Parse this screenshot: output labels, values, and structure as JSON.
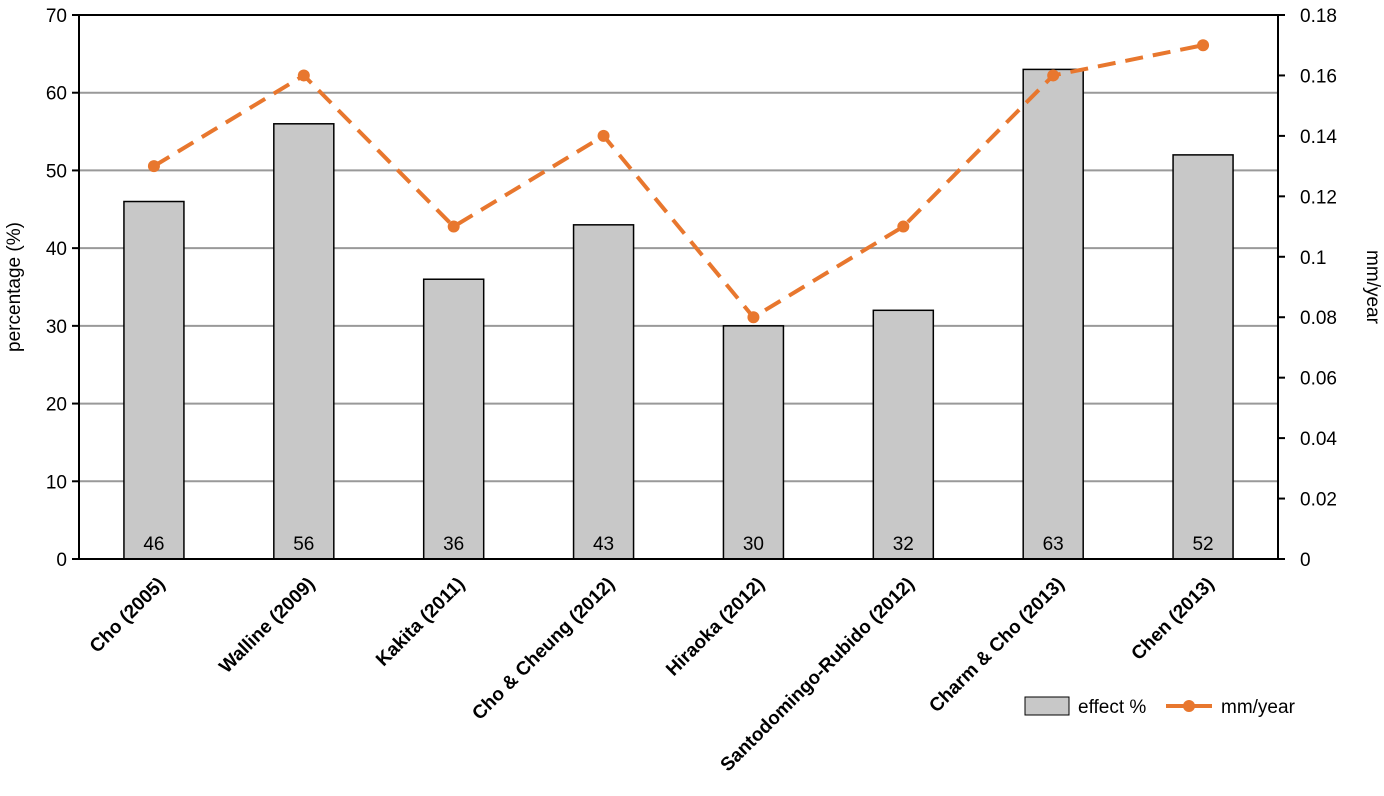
{
  "chart_data": {
    "type": "bar",
    "title": "",
    "categories": [
      "Cho (2005)",
      "Walline (2009)",
      "Kakita (2011)",
      "Cho & Cheung (2012)",
      "Hiraoka (2012)",
      "Santodomingo-Rubido (2012)",
      "Charm & Cho (2013)",
      "Chen (2013)"
    ],
    "series": [
      {
        "name": "effect %",
        "type": "bar",
        "axis": "left",
        "values": [
          46,
          56,
          36,
          43,
          30,
          32,
          63,
          52
        ],
        "color": "#c8c8c8"
      },
      {
        "name": "mm/year",
        "type": "line",
        "axis": "right",
        "values": [
          0.13,
          0.16,
          0.11,
          0.14,
          0.08,
          0.11,
          0.16,
          0.17
        ],
        "color": "#e8772e"
      }
    ],
    "data_labels": [
      "46",
      "56",
      "36",
      "43",
      "30",
      "32",
      "63",
      "52"
    ],
    "ylabel": "percentage (%)",
    "ylabel_right": "mm/year",
    "ylim": [
      0,
      70
    ],
    "ylim_right": [
      0,
      0.18
    ],
    "yticks": [
      "0",
      "10",
      "20",
      "30",
      "40",
      "50",
      "60",
      "70"
    ],
    "yticks_right": [
      "0",
      "0.02",
      "0.04",
      "0.06",
      "0.08",
      "0.1",
      "0.12",
      "0.14",
      "0.16",
      "0.18"
    ],
    "grid": true,
    "legend_position": "bottom-right"
  }
}
